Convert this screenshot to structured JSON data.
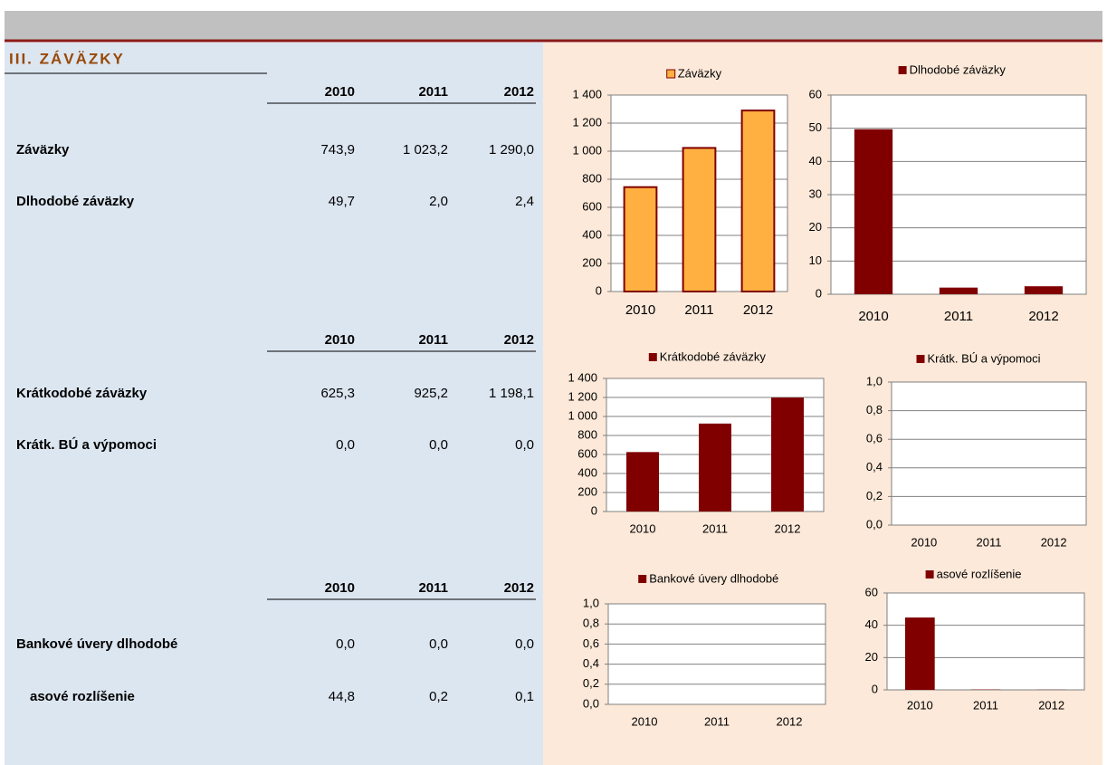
{
  "section_title": "III. ZÁVÄZKY",
  "tables": [
    {
      "header": [
        "2010",
        "2011",
        "2012"
      ],
      "rows": [
        [
          "Záväzky",
          "743,9",
          "1 023,2",
          "1 290,0"
        ],
        [
          "Dlhodobé záväzky",
          "49,7",
          "2,0",
          "2,4"
        ]
      ]
    },
    {
      "header": [
        "2010",
        "2011",
        "2012"
      ],
      "rows": [
        [
          "Krátkodobé záväzky",
          "625,3",
          "925,2",
          "1 198,1"
        ],
        [
          "Krátk. BÚ a výpomoci",
          "0,0",
          "0,0",
          "0,0"
        ]
      ]
    },
    {
      "header": [
        "2010",
        "2011",
        "2012"
      ],
      "rows": [
        [
          "Bankové úvery dlhodobé",
          "0,0",
          "0,0",
          "0,0"
        ],
        [
          "asové rozlíšenie",
          "44,8",
          "0,2",
          "0,1"
        ]
      ]
    }
  ],
  "chart_data": [
    {
      "type": "bar",
      "categories": [
        "2010",
        "2011",
        "2012"
      ],
      "series": [
        {
          "name": "Záväzky",
          "color": "#ffb040",
          "values": [
            743.9,
            1023.2,
            1290.0
          ]
        }
      ],
      "ylim": [
        0,
        1400
      ],
      "yticks": [
        0,
        200,
        400,
        600,
        800,
        {
          "value": 1000,
          "label": "1 000"
        },
        {
          "value": 1200,
          "label": "1 200"
        },
        {
          "value": 1400,
          "label": "1 400"
        }
      ],
      "grid": true
    },
    {
      "type": "bar",
      "categories": [
        "2010",
        "2011",
        "2012"
      ],
      "series": [
        {
          "name": "Dlhodobé záväzky",
          "color": "#800000",
          "values": [
            49.7,
            2.0,
            2.4
          ]
        }
      ],
      "ylim": [
        0,
        60
      ],
      "yticks": [
        0,
        10,
        20,
        30,
        40,
        50,
        60
      ],
      "grid": true
    },
    {
      "type": "bar",
      "categories": [
        "2010",
        "2011",
        "2012"
      ],
      "series": [
        {
          "name": "Krátkodobé záväzky",
          "color": "#800000",
          "values": [
            625.3,
            925.2,
            1198.1
          ]
        }
      ],
      "ylim": [
        0,
        1400
      ],
      "yticks": [
        0,
        200,
        400,
        600,
        800,
        {
          "value": 1000,
          "label": "1 000"
        },
        {
          "value": 1200,
          "label": "1 200"
        },
        {
          "value": 1400,
          "label": "1 400"
        }
      ],
      "grid": true
    },
    {
      "type": "bar",
      "categories": [
        "2010",
        "2011",
        "2012"
      ],
      "series": [
        {
          "name": "Krátk. BÚ a výpomoci",
          "color": "#800000",
          "values": [
            0,
            0,
            0
          ]
        }
      ],
      "ylim": [
        0,
        1
      ],
      "yticks": [
        {
          "value": 0,
          "label": "0,0"
        },
        {
          "value": 0.2,
          "label": "0,2"
        },
        {
          "value": 0.4,
          "label": "0,4"
        },
        {
          "value": 0.6,
          "label": "0,6"
        },
        {
          "value": 0.8,
          "label": "0,8"
        },
        {
          "value": 1,
          "label": "1,0"
        }
      ],
      "grid": true
    },
    {
      "type": "bar",
      "categories": [
        "2010",
        "2011",
        "2012"
      ],
      "series": [
        {
          "name": "Bankové úvery dlhodobé",
          "color": "#800000",
          "values": [
            0,
            0,
            0
          ]
        }
      ],
      "ylim": [
        0,
        1
      ],
      "yticks": [
        {
          "value": 0,
          "label": "0,0"
        },
        {
          "value": 0.2,
          "label": "0,2"
        },
        {
          "value": 0.4,
          "label": "0,4"
        },
        {
          "value": 0.6,
          "label": "0,6"
        },
        {
          "value": 0.8,
          "label": "0,8"
        },
        {
          "value": 1,
          "label": "1,0"
        }
      ],
      "grid": true
    },
    {
      "type": "bar",
      "categories": [
        "2010",
        "2011",
        "2012"
      ],
      "series": [
        {
          "name": "asové rozlíšenie",
          "color": "#800000",
          "values": [
            44.8,
            0.2,
            0.1
          ]
        }
      ],
      "ylim": [
        0,
        60
      ],
      "yticks": [
        0,
        20,
        40,
        60
      ],
      "grid": true
    }
  ]
}
